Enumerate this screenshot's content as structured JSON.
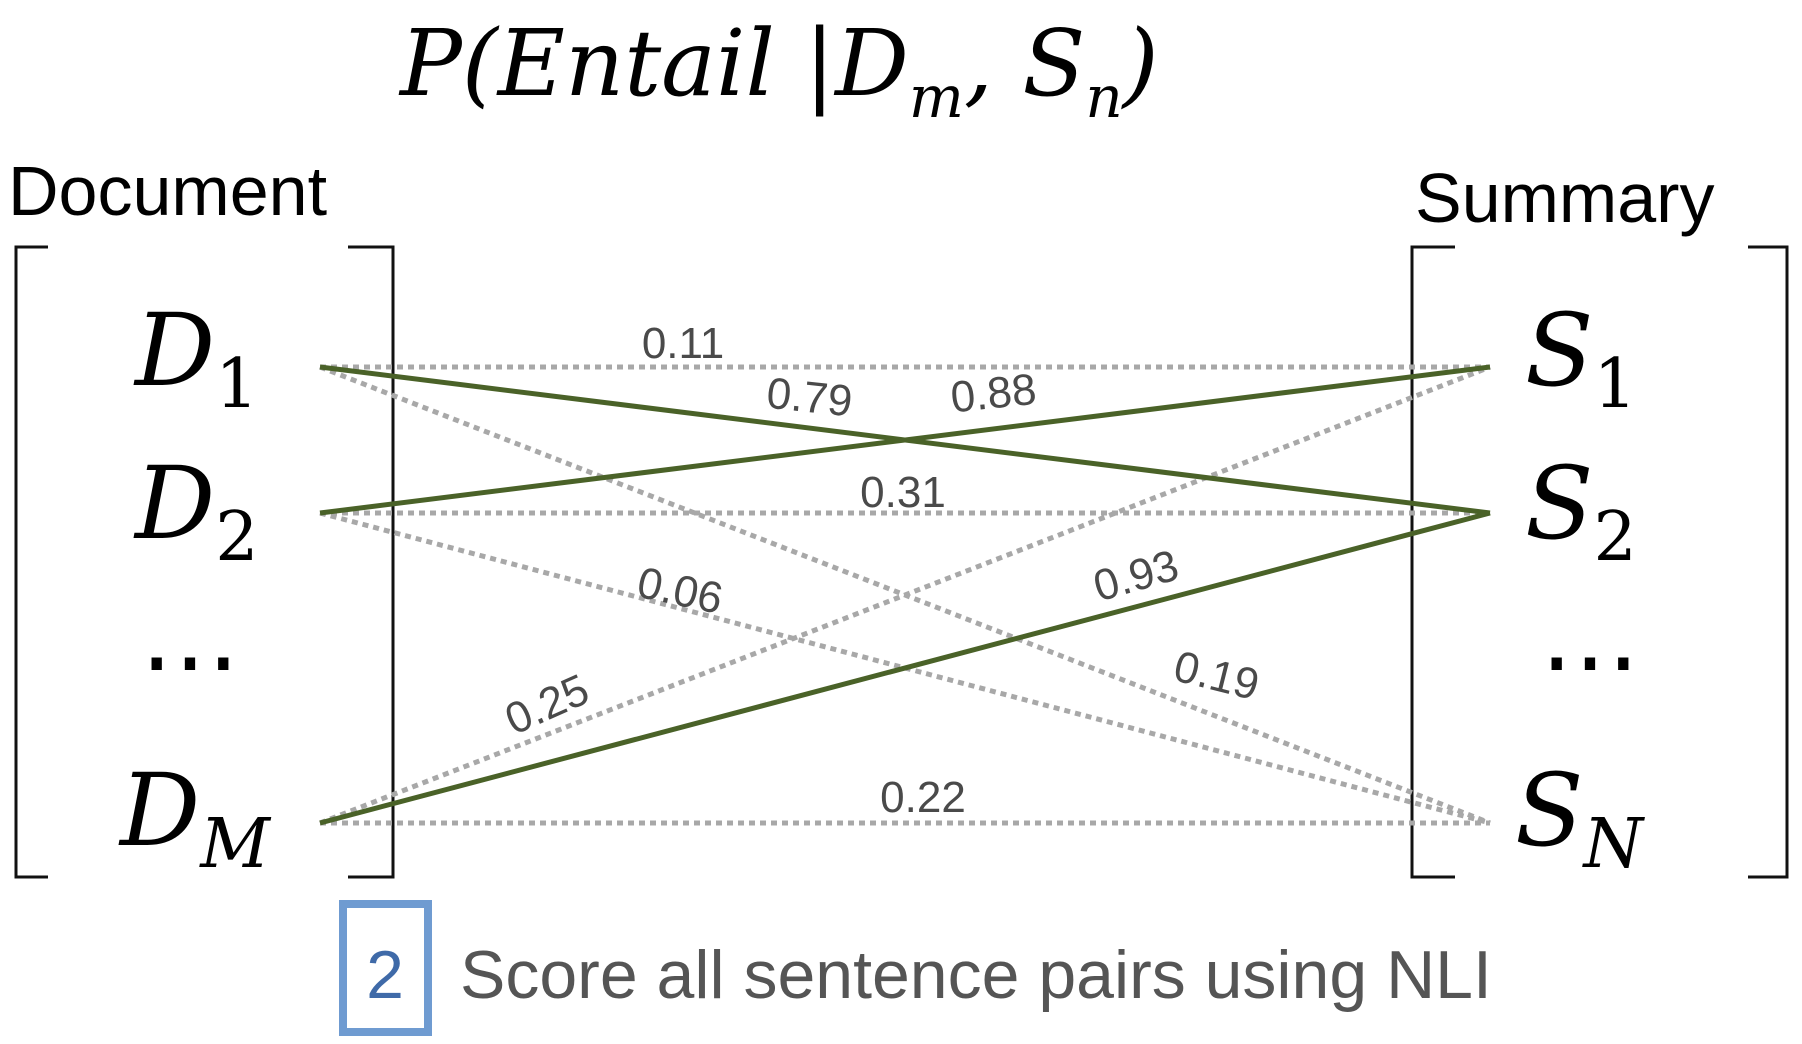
{
  "formula": {
    "prefix": "P(Entail |D",
    "sub_m": "m",
    "comma": ", S",
    "sub_n": "n",
    "suffix": ")"
  },
  "left_header": "Document",
  "right_header": "Summary",
  "document": [
    {
      "id": "D1",
      "base": "D",
      "sub": "1"
    },
    {
      "id": "D2",
      "base": "D",
      "sub": "2"
    },
    {
      "id": "Ddots",
      "base": "⋯",
      "sub": ""
    },
    {
      "id": "DM",
      "base": "D",
      "sub": "M"
    }
  ],
  "summary": [
    {
      "id": "S1",
      "base": "S",
      "sub": "1"
    },
    {
      "id": "S2",
      "base": "S",
      "sub": "2"
    },
    {
      "id": "Sdots",
      "base": "⋯",
      "sub": ""
    },
    {
      "id": "SN",
      "base": "S",
      "sub": "N"
    }
  ],
  "edges": [
    {
      "from": "D1",
      "to": "S1",
      "score": "0.11",
      "style": "dotted"
    },
    {
      "from": "D1",
      "to": "S2",
      "score": "0.79",
      "style": "solid"
    },
    {
      "from": "D1",
      "to": "SN",
      "score": "",
      "style": "dotted"
    },
    {
      "from": "D2",
      "to": "S1",
      "score": "0.88",
      "style": "solid"
    },
    {
      "from": "D2",
      "to": "S2",
      "score": "0.31",
      "style": "dotted"
    },
    {
      "from": "D2",
      "to": "SN",
      "score": "0.06",
      "style": "dotted"
    },
    {
      "from": "DM",
      "to": "S1",
      "score": "0.25",
      "style": "dotted"
    },
    {
      "from": "DM",
      "to": "S2",
      "score": "0.93",
      "style": "solid"
    },
    {
      "from": "DM",
      "to": "SN",
      "score": "0.22",
      "style": "dotted"
    }
  ],
  "extra_label": {
    "score": "0.19"
  },
  "step": {
    "number": "2",
    "text": "Score all sentence pairs using NLI"
  },
  "colors": {
    "solid": "#4a6228",
    "dotted": "#a8a8a8",
    "step_box": "#6f9bd1",
    "step_number": "#3f6aa8",
    "caption": "#555555",
    "score_text": "#4a4a4a"
  }
}
